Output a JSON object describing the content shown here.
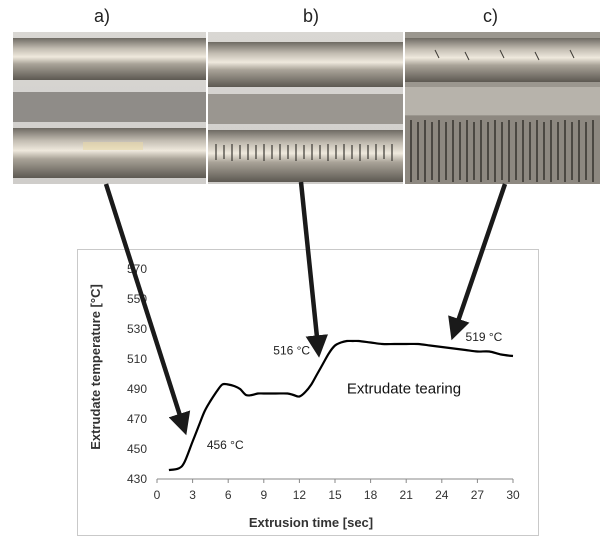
{
  "panel_labels": [
    "a)",
    "b)",
    "c)"
  ],
  "colors": {
    "line": "#000000",
    "arrow": "#1a1a1a",
    "axis_text": "#333333",
    "frame": "#c9c9c9"
  },
  "chart_data": {
    "type": "line",
    "xlabel": "Extrusion time [sec]",
    "ylabel": "Extrudate  temperature  [°C]",
    "xlim": [
      0,
      30
    ],
    "ylim": [
      430,
      570
    ],
    "x_ticks": [
      "0",
      "3",
      "6",
      "9",
      "12",
      "15",
      "18",
      "21",
      "24",
      "27",
      "30"
    ],
    "y_ticks": [
      "430",
      "450",
      "470",
      "490",
      "510",
      "530",
      "550",
      "570"
    ],
    "grid": false,
    "series": [
      {
        "x": [
          1.0,
          1.8,
          2.3,
          3.0,
          3.5,
          4.0,
          4.5,
          5.0,
          5.5,
          6.0,
          6.5,
          7.0,
          7.5,
          8.0,
          8.5,
          9.0,
          10.0,
          11.0,
          11.5,
          12.0,
          12.5,
          13.0,
          13.5,
          14.0,
          14.5,
          15.0,
          15.5,
          16.0,
          16.5,
          17.0,
          18.0,
          19.0,
          20.0,
          21.0,
          22.0,
          23.0,
          24.0,
          25.0,
          26.0,
          27.0,
          28.0,
          29.0,
          30.0
        ],
        "y": [
          436,
          437,
          441,
          455,
          465,
          475,
          482,
          488,
          493,
          493,
          492,
          490,
          486,
          486,
          487,
          487,
          487,
          487,
          486,
          485,
          488,
          493,
          500,
          507,
          514,
          519,
          521,
          522,
          522,
          522,
          521,
          520,
          520,
          520,
          520,
          519,
          518,
          517,
          516,
          515,
          515,
          513,
          512
        ]
      }
    ],
    "annotations": [
      {
        "text": "456 °C",
        "x": 4.2,
        "y": 450
      },
      {
        "text": "516 °C",
        "x": 9.8,
        "y": 513
      },
      {
        "text": "519 °C",
        "x": 26.0,
        "y": 522
      },
      {
        "text": "Extrudate tearing",
        "x": 16.0,
        "y": 487
      }
    ]
  }
}
